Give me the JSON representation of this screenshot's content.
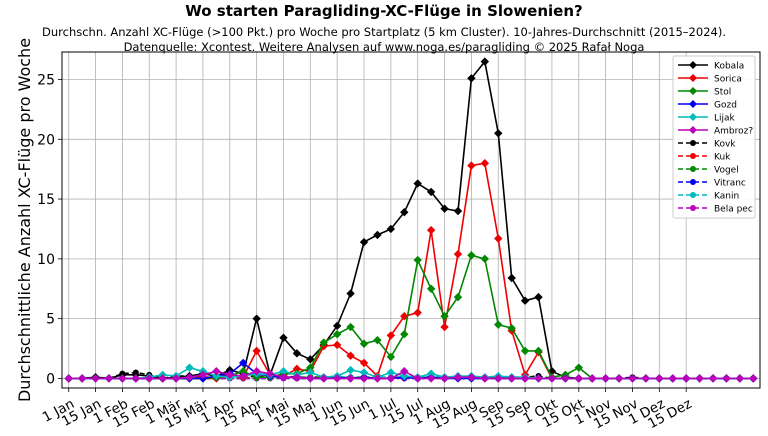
{
  "chart_data": {
    "type": "line",
    "title": "Wo starten Paragliding-XC-Flüge in Slowenien?",
    "subtitle_line1": "Durchschn. Anzahl XC-Flüge (>100 Pkt.) pro Woche pro Startplatz (5 km Cluster). 10-Jahres-Durchschnitt (2015–2024).",
    "subtitle_line2": "Datenquelle: Xcontest. Weitere Analysen auf www.noga.es/paragliding © 2025 Rafał Noga",
    "xlabel": "",
    "ylabel": "Durchschnittliche Anzahl XC-Flüge pro Woche",
    "ylim": [
      -0.8,
      27.3
    ],
    "y_ticks": [
      0,
      5,
      10,
      15,
      20,
      25
    ],
    "x_tick_labels": [
      "1 Jan",
      "15 Jan",
      "1 Feb",
      "15 Feb",
      "1 Mär",
      "15 Mär",
      "1 Apr",
      "15 Apr",
      "1 Mai",
      "15 Mai",
      "1 Jun",
      "15 Jun",
      "1 Jul",
      "15 Jul",
      "1 Aug",
      "15 Aug",
      "1 Sep",
      "15 Sep",
      "1 Okt",
      "15 Okt",
      "1 Nov",
      "15 Nov",
      "1 Dez",
      "15 Dez"
    ],
    "x_weeks": [
      1,
      2,
      3,
      4,
      5,
      6,
      7,
      8,
      9,
      10,
      11,
      12,
      13,
      14,
      15,
      16,
      17,
      18,
      19,
      20,
      21,
      22,
      23,
      24,
      25,
      26,
      27,
      28,
      29,
      30,
      31,
      32,
      33,
      34,
      35,
      36,
      37,
      38,
      39,
      40,
      41,
      42,
      43,
      44,
      45,
      46,
      47,
      48,
      49,
      50,
      51,
      52
    ],
    "grid": true,
    "legend_position": "top-right",
    "series": [
      {
        "name": "Kobala",
        "color": "#000000",
        "dashed": false,
        "marker": "diamond",
        "values": [
          0,
          0,
          0.1,
          0,
          0.3,
          0.3,
          0.2,
          0,
          0.1,
          0.2,
          0.4,
          0.2,
          0.7,
          0.4,
          5.0,
          0.3,
          3.4,
          2.1,
          1.6,
          2.8,
          4.4,
          7.1,
          11.4,
          12.0,
          12.5,
          13.9,
          16.3,
          15.6,
          14.2,
          14.0,
          25.1,
          26.5,
          20.5,
          8.4,
          6.5,
          6.8,
          0.6,
          0.1,
          0,
          0,
          0,
          0,
          0,
          0,
          0,
          0,
          0,
          0,
          0,
          0,
          0,
          0
        ]
      },
      {
        "name": "Sorica",
        "color": "#ee0000",
        "dashed": false,
        "marker": "diamond",
        "values": [
          0,
          0,
          0,
          0,
          0,
          0,
          0,
          0,
          0,
          0,
          0,
          0,
          0.4,
          0.1,
          2.3,
          0.3,
          0.2,
          0.8,
          0.6,
          2.7,
          2.8,
          1.9,
          1.3,
          0.2,
          3.6,
          5.2,
          5.5,
          12.4,
          4.3,
          10.4,
          17.8,
          18.0,
          11.7,
          4.0,
          0.3,
          2.2,
          0,
          0,
          0,
          0,
          0,
          0,
          0,
          0,
          0,
          0,
          0,
          0,
          0,
          0,
          0,
          0
        ]
      },
      {
        "name": "Stol",
        "color": "#008800",
        "dashed": false,
        "marker": "diamond",
        "values": [
          0,
          0,
          0,
          0,
          0,
          0,
          0,
          0,
          0,
          0,
          0,
          0.1,
          0.2,
          0.6,
          0.1,
          0.1,
          0.4,
          0.4,
          0.9,
          3.0,
          3.7,
          4.3,
          2.9,
          3.2,
          1.8,
          3.7,
          9.9,
          7.5,
          5.2,
          6.8,
          10.3,
          10.0,
          4.5,
          4.2,
          2.3,
          2.3,
          0.1,
          0.3,
          0.9,
          0,
          0,
          0,
          0,
          0,
          0,
          0,
          0,
          0,
          0,
          0,
          0,
          0
        ]
      },
      {
        "name": "Gozd",
        "color": "#0000ee",
        "dashed": false,
        "marker": "diamond",
        "values": [
          0,
          0,
          0,
          0,
          0,
          0,
          0,
          0,
          0,
          0,
          0,
          0.2,
          0.4,
          1.3,
          0.4,
          0.2,
          0.1,
          0.1,
          0,
          0,
          0.1,
          0,
          0.1,
          0,
          0,
          0.1,
          0,
          0.1,
          0,
          0,
          0,
          0,
          0,
          0,
          0,
          0,
          0,
          0,
          0,
          0,
          0,
          0,
          0,
          0,
          0,
          0,
          0,
          0,
          0,
          0,
          0,
          0
        ]
      },
      {
        "name": "Lijak",
        "color": "#00bbbb",
        "dashed": false,
        "marker": "diamond",
        "values": [
          0,
          0,
          0,
          0,
          0,
          0,
          0.1,
          0.3,
          0.2,
          0.9,
          0.6,
          0.2,
          0.1,
          0.2,
          0.4,
          0.3,
          0.6,
          0.3,
          0.5,
          0.1,
          0.2,
          0.7,
          0.5,
          0.1,
          0.5,
          0.2,
          0.1,
          0.4,
          0.1,
          0.2,
          0.2,
          0.1,
          0.2,
          0.1,
          0.1,
          0,
          0,
          0,
          0,
          0,
          0,
          0,
          0,
          0,
          0,
          0,
          0,
          0,
          0,
          0,
          0,
          0
        ]
      },
      {
        "name": "Ambroz?",
        "color": "#bb00bb",
        "dashed": false,
        "marker": "diamond",
        "values": [
          0,
          0,
          0,
          0,
          0,
          0,
          0,
          0,
          0,
          0.1,
          0.3,
          0.6,
          0.3,
          0.2,
          0.6,
          0.4,
          0.1,
          0.1,
          0,
          0,
          0,
          0,
          0,
          0,
          0,
          0.6,
          0,
          0,
          0,
          0.1,
          0.1,
          0,
          0,
          0,
          0,
          0,
          0,
          0,
          0,
          0,
          0,
          0,
          0,
          0,
          0,
          0,
          0,
          0,
          0,
          0,
          0,
          0
        ]
      },
      {
        "name": "Kovk",
        "color": "#000000",
        "dashed": true,
        "marker": "circle",
        "values": [
          0,
          0,
          0.1,
          0,
          0.4,
          0.5,
          0.3,
          0,
          0.2,
          0.2,
          0.1,
          0.1,
          0.2,
          0.1,
          0.2,
          0.1,
          0.2,
          0.1,
          0.1,
          0.1,
          0.1,
          0.1,
          0,
          0.1,
          0,
          0.2,
          0.1,
          0.1,
          0,
          0.1,
          0,
          0.1,
          0,
          0.1,
          0.1,
          0.2,
          0,
          0,
          0,
          0,
          0,
          0,
          0.1,
          0,
          0,
          0,
          0,
          0,
          0,
          0,
          0,
          0
        ]
      },
      {
        "name": "Kuk",
        "color": "#ee0000",
        "dashed": true,
        "marker": "circle",
        "values": [
          0,
          0,
          0,
          0,
          0,
          0,
          0,
          0,
          0,
          0.1,
          0.1,
          0.1,
          0,
          0.1,
          0,
          0.1,
          0.1,
          0,
          0,
          0.1,
          0,
          0,
          0.1,
          0,
          0,
          0.1,
          0,
          0,
          0.1,
          0,
          0,
          0.1,
          0,
          0,
          0,
          0,
          0,
          0,
          0,
          0,
          0,
          0,
          0,
          0,
          0,
          0,
          0,
          0,
          0,
          0,
          0,
          0
        ]
      },
      {
        "name": "Vogel",
        "color": "#008800",
        "dashed": true,
        "marker": "circle",
        "values": [
          0,
          0,
          0,
          0,
          0,
          0,
          0,
          0,
          0,
          0,
          0,
          0,
          0,
          0,
          0.1,
          0.1,
          0.1,
          0.1,
          0.1,
          0.1,
          0.1,
          0.1,
          0.1,
          0.1,
          0.1,
          0.1,
          0.1,
          0.1,
          0.1,
          0.1,
          0.1,
          0,
          0.1,
          0,
          0,
          0,
          0,
          0,
          0,
          0,
          0,
          0,
          0,
          0,
          0,
          0,
          0,
          0,
          0,
          0,
          0,
          0
        ]
      },
      {
        "name": "Vitranc",
        "color": "#0000ee",
        "dashed": true,
        "marker": "circle",
        "values": [
          0,
          0,
          0,
          0,
          0,
          0,
          0,
          0,
          0,
          0,
          0,
          0,
          0,
          0,
          0,
          0,
          0.1,
          0,
          0,
          0,
          0.1,
          0,
          0,
          0,
          0.1,
          0,
          0,
          0.1,
          0,
          0.1,
          0,
          0,
          0,
          0,
          0,
          0,
          0,
          0,
          0,
          0,
          0,
          0,
          0,
          0,
          0,
          0,
          0,
          0,
          0,
          0,
          0,
          0
        ]
      },
      {
        "name": "Kanin",
        "color": "#00bbbb",
        "dashed": true,
        "marker": "circle",
        "values": [
          0,
          0,
          0,
          0,
          0,
          0,
          0,
          0,
          0,
          0,
          0,
          0,
          0,
          0,
          0,
          0,
          0,
          0,
          0,
          0,
          0.1,
          0.1,
          0,
          0.1,
          0.1,
          0.1,
          0,
          0.2,
          0.1,
          0.1,
          0.1,
          0,
          0,
          0,
          0,
          0,
          0,
          0,
          0,
          0,
          0,
          0,
          0,
          0,
          0,
          0,
          0,
          0,
          0,
          0,
          0,
          0
        ]
      },
      {
        "name": "Bela pec",
        "color": "#bb00bb",
        "dashed": true,
        "marker": "circle",
        "values": [
          0,
          0,
          0,
          0,
          0,
          0,
          0,
          0,
          0,
          0,
          0,
          0,
          0,
          0,
          0,
          0,
          0,
          0,
          0,
          0,
          0,
          0,
          0,
          0,
          0,
          0,
          0,
          0,
          0,
          0,
          0,
          0,
          0,
          0,
          0,
          0,
          0,
          0,
          0,
          0,
          0,
          0,
          0,
          0,
          0,
          0,
          0,
          0,
          0,
          0,
          0,
          0
        ]
      }
    ]
  }
}
